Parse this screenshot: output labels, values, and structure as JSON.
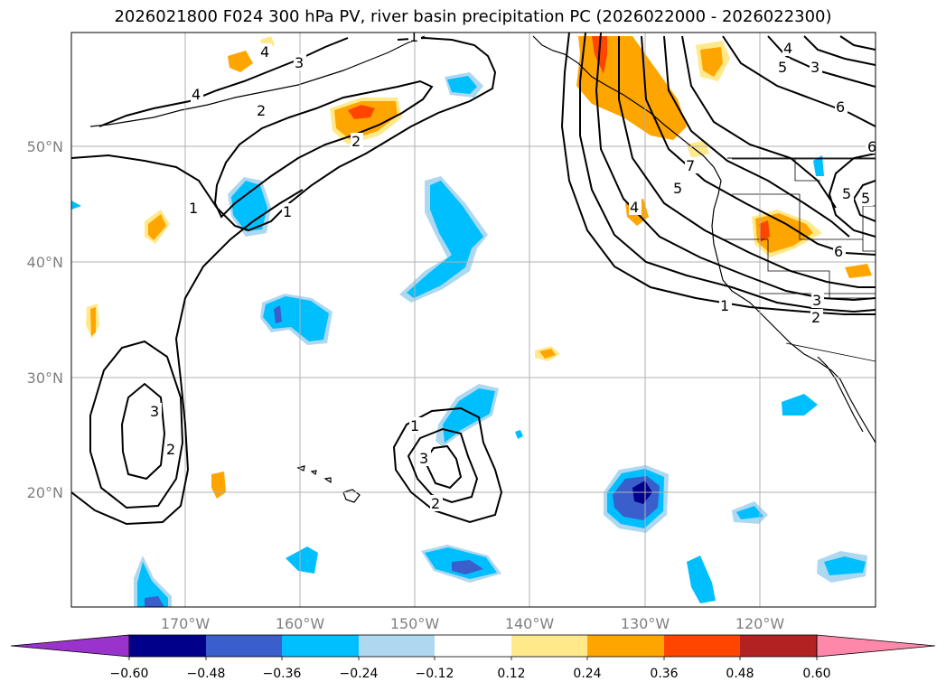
{
  "title": "2026021800 F024 300 hPa PV, river basin precipitation PC (2026022000 - 2026022300)",
  "map": {
    "lat_ticks": [
      "50°N",
      "40°N",
      "30°N",
      "20°N"
    ],
    "lon_ticks": [
      "170°W",
      "160°W",
      "150°W",
      "140°W",
      "130°W",
      "120°W"
    ],
    "contour_labels": [
      "1",
      "1",
      "1",
      "1",
      "1",
      "2",
      "2",
      "2",
      "2",
      "2",
      "3",
      "3",
      "3",
      "3",
      "3",
      "4",
      "4",
      "4",
      "4",
      "5",
      "5",
      "5",
      "5",
      "6",
      "6",
      "6",
      "7"
    ]
  },
  "colorbar": {
    "colors": [
      "#9933cc",
      "#00008b",
      "#3a5fcd",
      "#00bfff",
      "#add8f0",
      "#ffffff",
      "#ffe98a",
      "#ffa500",
      "#ff4500",
      "#b22222",
      "#ff88aa"
    ],
    "tick_labels": [
      "−0.60",
      "−0.48",
      "−0.36",
      "−0.24",
      "−0.12",
      "0.12",
      "0.24",
      "0.36",
      "0.48",
      "0.60"
    ]
  }
}
